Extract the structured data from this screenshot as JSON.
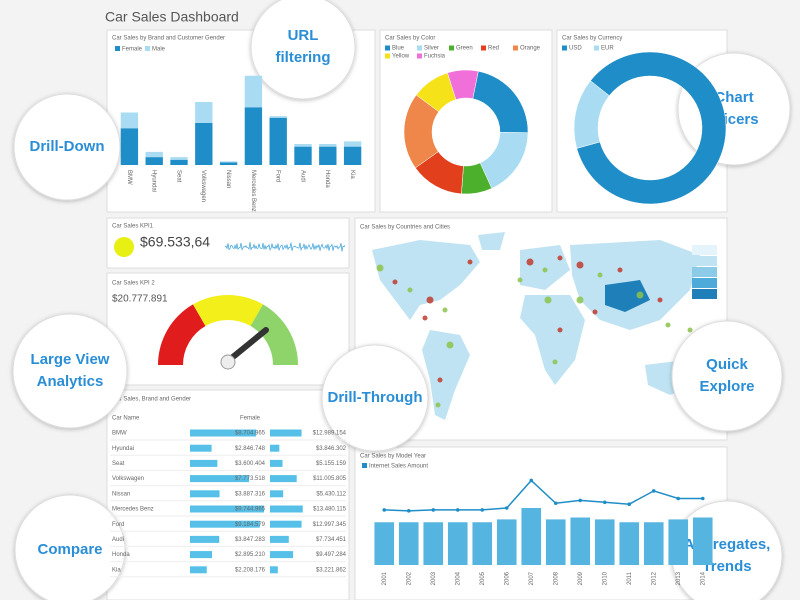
{
  "header": {
    "title": "Car Sales Dashboard"
  },
  "callouts": [
    "URL filtering",
    "Drill-Down",
    "Chart Slicers",
    "Large View Analytics",
    "Drill-Through",
    "Quick Explore",
    "Compare",
    "Aggregates, Trends"
  ],
  "brand_gender": {
    "type": "bar",
    "title": "Car Sales by Brand and Customer Gender",
    "ylim": [
      0,
      20
    ],
    "categories": [
      "BMW",
      "Hyundai",
      "Seat",
      "Volkswagen",
      "Nissan",
      "Mercedes Benz",
      "Ford",
      "Audi",
      "Honda",
      "Kia"
    ],
    "series": [
      {
        "name": "Female",
        "color": "#1f8dc7",
        "values": [
          7,
          1.5,
          1,
          8,
          0.5,
          11,
          9,
          3.5,
          3.5,
          3.5
        ]
      },
      {
        "name": "Male",
        "color": "#a9dcf2",
        "values": [
          3,
          1,
          0.5,
          4,
          0.2,
          6,
          0.3,
          0.5,
          0.5,
          1
        ]
      }
    ]
  },
  "color": {
    "type": "pie",
    "title": "Car Sales by Color",
    "categories": [
      "Blue",
      "Silver",
      "Green",
      "Red",
      "Orange",
      "Yellow",
      "Fuchsia"
    ],
    "colors": [
      "#1f8dc7",
      "#a9dcf2",
      "#4cb02c",
      "#e2401c",
      "#f0874a",
      "#f6e218",
      "#f06fd8"
    ],
    "values": [
      22,
      18,
      8,
      14,
      20,
      10,
      8
    ]
  },
  "currency": {
    "type": "pie",
    "title": "Car Sales by Currency",
    "categories": [
      "USD",
      "EUR"
    ],
    "colors": [
      "#1f8dc7",
      "#a9dcf2"
    ],
    "values": [
      85,
      15
    ]
  },
  "kpi1": {
    "title": "Car Sales KPI1",
    "value": "$69.533,64"
  },
  "kpi2": {
    "title": "Car Sales KPI 2",
    "value": "$20.777.891"
  },
  "map": {
    "title": "Car Sales by Countries and Cities"
  },
  "table": {
    "title": "Car Sales, Brand and Gender",
    "columns": [
      "Car Name",
      "Female"
    ],
    "rows": [
      {
        "name": "BMW",
        "female": {
          "value": 8704965,
          "label": "$8.704.965"
        },
        "male": {
          "value": 12989154,
          "label": "$12.989.154"
        }
      },
      {
        "name": "Hyundai",
        "female": {
          "value": 2846748,
          "label": "$2.846.748"
        },
        "male": {
          "value": 3846302,
          "label": "$3.846.302"
        }
      },
      {
        "name": "Seat",
        "female": {
          "value": 3600404,
          "label": "$3.600.404"
        },
        "male": {
          "value": 5155159,
          "label": "$5.155.159"
        }
      },
      {
        "name": "Volkswagen",
        "female": {
          "value": 7773518,
          "label": "$7.773.518"
        },
        "male": {
          "value": 11005805,
          "label": "$11.005.805"
        }
      },
      {
        "name": "Nissan",
        "female": {
          "value": 3887316,
          "label": "$3.887.316"
        },
        "male": {
          "value": 5430112,
          "label": "$5.430.112"
        }
      },
      {
        "name": "Mercedes Benz",
        "female": {
          "value": 9744965,
          "label": "$9.744.965"
        },
        "male": {
          "value": 13480115,
          "label": "$13.480.115"
        }
      },
      {
        "name": "Ford",
        "female": {
          "value": 9184579,
          "label": "$9.184.579"
        },
        "male": {
          "value": 12997345,
          "label": "$12.997.345"
        }
      },
      {
        "name": "Audi",
        "female": {
          "value": 3847283,
          "label": "$3.847.283"
        },
        "male": {
          "value": 7734451,
          "label": "$7.734.451"
        }
      },
      {
        "name": "Honda",
        "female": {
          "value": 2895210,
          "label": "$2.895.210"
        },
        "male": {
          "value": 9497284,
          "label": "$9.497.284"
        }
      },
      {
        "name": "Kia",
        "female": {
          "value": 2208176,
          "label": "$2.208.176"
        },
        "male": {
          "value": 3221862,
          "label": "$3.221.862"
        }
      }
    ]
  },
  "model_year": {
    "type": "bar",
    "title": "Car Sales by Model Year",
    "legend": "Internet Sales Amount",
    "ylim": [
      0,
      100
    ],
    "categories": [
      "2001",
      "2002",
      "2003",
      "2004",
      "2005",
      "2006",
      "2007",
      "2008",
      "2009",
      "2010",
      "2011",
      "2012",
      "2013",
      "2014"
    ],
    "bars": [
      45,
      45,
      45,
      45,
      45,
      48,
      60,
      48,
      50,
      48,
      45,
      45,
      48,
      50
    ],
    "line": [
      58,
      57,
      58,
      58,
      58,
      60,
      89,
      65,
      68,
      66,
      64,
      78,
      70,
      70
    ]
  }
}
